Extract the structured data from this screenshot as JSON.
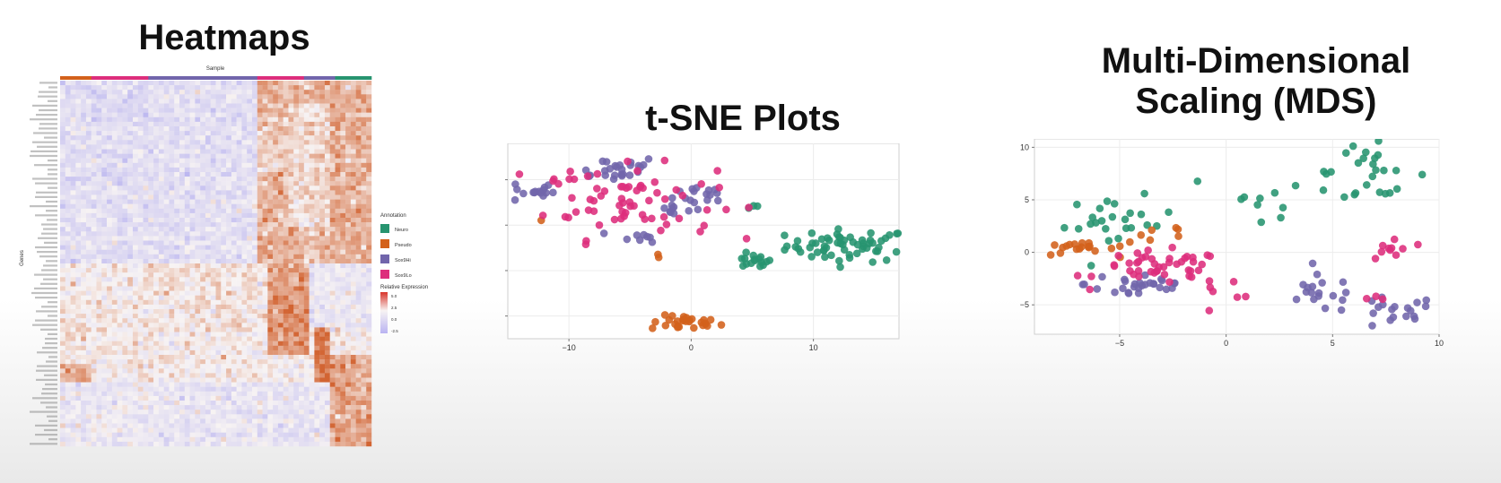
{
  "panels": {
    "heatmap_title": "Heatmaps",
    "tsne_title": "t-SNE Plots",
    "mds_title": "Multi-Dimensional\nScaling (MDS)"
  },
  "colors": {
    "group1": "#27946f",
    "group2": "#d3611b",
    "group3": "#7165ab",
    "group4": "#dd2e7c",
    "expr_high": "#e3683f",
    "expr_mid": "#f7f3f3",
    "expr_low": "#bcb7f0"
  },
  "heatmap": {
    "column_annotation_label": "Sample",
    "row_axis_label": "Genes",
    "legend": {
      "annotation_title": "Annotation",
      "annotation_items": [
        "Neuro",
        "Pseudo",
        "Sox9Hi",
        "Sox9Lo"
      ],
      "scale_title": "Relative Expression",
      "scale_ticks": [
        "5.0",
        "2.5",
        "0.0",
        "-2.5"
      ]
    }
  },
  "chart_data": [
    {
      "type": "heatmap",
      "title": "Heatmaps",
      "xlabel": "Sample",
      "ylabel": "Genes",
      "legend_items": [
        "Neuro",
        "Pseudo",
        "Sox9Hi",
        "Sox9Lo"
      ],
      "color_scale_ticks": [
        5.0,
        2.5,
        0.0,
        -2.5
      ],
      "legend_position": "right"
    },
    {
      "type": "scatter",
      "title": "t-SNE Plots",
      "xlim": [
        -15,
        17
      ],
      "ylim": [
        -25,
        18
      ],
      "x_ticks": [
        -10,
        0,
        10
      ],
      "y_ticks": [
        10,
        0,
        -10,
        -20
      ],
      "grid": true,
      "clusters": [
        {
          "group": 1,
          "cx": 13.0,
          "cy": -4.5,
          "sx": 2.6,
          "sy": 1.8,
          "n": 60
        },
        {
          "group": 1,
          "cx": 5.0,
          "cy": -8.0,
          "sx": 0.8,
          "sy": 0.8,
          "n": 16
        },
        {
          "group": 1,
          "cx": 5.5,
          "cy": 3.8,
          "sx": 0.7,
          "sy": 0.3,
          "n": 3
        },
        {
          "group": 2,
          "cx": -0.5,
          "cy": -21.5,
          "sx": 1.4,
          "sy": 0.8,
          "n": 28
        },
        {
          "group": 2,
          "cx": -12.2,
          "cy": 1.0,
          "sx": 0.1,
          "sy": 0.1,
          "n": 1
        },
        {
          "group": 2,
          "cx": -2.6,
          "cy": -6.6,
          "sx": 0.2,
          "sy": 0.4,
          "n": 2
        },
        {
          "group": 3,
          "cx": -13.0,
          "cy": 7.5,
          "sx": 0.9,
          "sy": 1.4,
          "n": 16
        },
        {
          "group": 3,
          "cx": -6.5,
          "cy": 12.5,
          "sx": 2.0,
          "sy": 1.4,
          "n": 25
        },
        {
          "group": 3,
          "cx": 1.5,
          "cy": 7.0,
          "sx": 1.4,
          "sy": 1.2,
          "n": 14
        },
        {
          "group": 3,
          "cx": -1.5,
          "cy": 3.5,
          "sx": 1.2,
          "sy": 1.0,
          "n": 10
        },
        {
          "group": 3,
          "cx": -4.0,
          "cy": -2.5,
          "sx": 0.9,
          "sy": 0.6,
          "n": 8
        },
        {
          "group": 4,
          "cx": -5.0,
          "cy": 5.0,
          "sx": 3.5,
          "sy": 4.0,
          "n": 60
        },
        {
          "group": 4,
          "cx": -10.0,
          "cy": 11.0,
          "sx": 1.4,
          "sy": 0.9,
          "n": 8
        }
      ]
    },
    {
      "type": "scatter",
      "title": "Multi-Dimensional Scaling (MDS)",
      "xlim": [
        -9,
        10
      ],
      "ylim": [
        -7.8,
        10.8
      ],
      "x_ticks": [
        -5,
        0,
        5,
        10
      ],
      "y_ticks": [
        10,
        5,
        0,
        -5
      ],
      "grid": true,
      "clusters": [
        {
          "group": 1,
          "cx": -5.0,
          "cy": 2.8,
          "sx": 1.3,
          "sy": 1.2,
          "n": 24
        },
        {
          "group": 1,
          "cx": 2.5,
          "cy": 5.5,
          "sx": 2.2,
          "sy": 1.0,
          "n": 14
        },
        {
          "group": 1,
          "cx": 6.8,
          "cy": 7.8,
          "sx": 1.3,
          "sy": 1.2,
          "n": 22
        },
        {
          "group": 2,
          "cx": -7.0,
          "cy": 0.3,
          "sx": 0.9,
          "sy": 0.3,
          "n": 18
        },
        {
          "group": 2,
          "cx": -3.2,
          "cy": 1.7,
          "sx": 0.9,
          "sy": 0.6,
          "n": 8
        },
        {
          "group": 3,
          "cx": -4.0,
          "cy": -3.0,
          "sx": 1.3,
          "sy": 0.8,
          "n": 28
        },
        {
          "group": 3,
          "cx": 4.5,
          "cy": -4.0,
          "sx": 1.0,
          "sy": 0.9,
          "n": 18
        },
        {
          "group": 3,
          "cx": 7.8,
          "cy": -5.8,
          "sx": 1.0,
          "sy": 0.8,
          "n": 18
        },
        {
          "group": 4,
          "cx": -3.0,
          "cy": -1.5,
          "sx": 1.5,
          "sy": 0.8,
          "n": 45
        },
        {
          "group": 4,
          "cx": 7.8,
          "cy": 0.2,
          "sx": 0.5,
          "sy": 0.8,
          "n": 10
        },
        {
          "group": 4,
          "cx": 0.5,
          "cy": -3.5,
          "sx": 1.2,
          "sy": 1.2,
          "n": 6
        },
        {
          "group": 4,
          "cx": 7.0,
          "cy": -4.5,
          "sx": 0.3,
          "sy": 0.3,
          "n": 3
        }
      ]
    }
  ]
}
